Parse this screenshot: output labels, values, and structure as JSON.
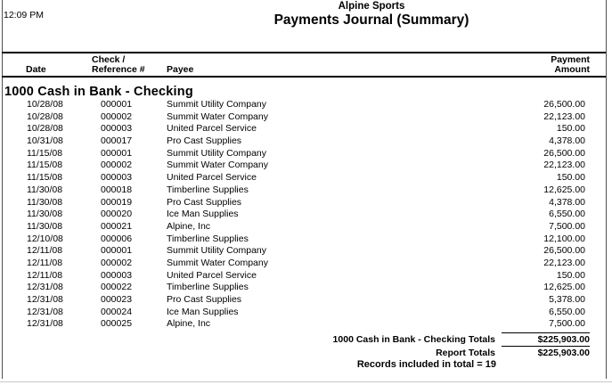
{
  "report": {
    "time": "12:09 PM",
    "company": "Alpine Sports",
    "title": "Payments Journal (Summary)",
    "columns": {
      "date": "Date",
      "check_line1": "Check /",
      "check_line2": "Reference #",
      "payee": "Payee",
      "amount_line1": "Payment",
      "amount_line2": "Amount"
    },
    "section": "1000 Cash in Bank - Checking",
    "rows": [
      {
        "date": "10/28/08",
        "check": "000001",
        "payee": "Summit Utility Company",
        "amount": "26,500.00"
      },
      {
        "date": "10/28/08",
        "check": "000002",
        "payee": "Summit Water Company",
        "amount": "22,123.00"
      },
      {
        "date": "10/28/08",
        "check": "000003",
        "payee": "United Parcel Service",
        "amount": "150.00"
      },
      {
        "date": "10/31/08",
        "check": "000017",
        "payee": "Pro Cast Supplies",
        "amount": "4,378.00"
      },
      {
        "date": "11/15/08",
        "check": "000001",
        "payee": "Summit Utility Company",
        "amount": "26,500.00"
      },
      {
        "date": "11/15/08",
        "check": "000002",
        "payee": "Summit Water Company",
        "amount": "22,123.00"
      },
      {
        "date": "11/15/08",
        "check": "000003",
        "payee": "United Parcel Service",
        "amount": "150.00"
      },
      {
        "date": "11/30/08",
        "check": "000018",
        "payee": "Timberline Supplies",
        "amount": "12,625.00"
      },
      {
        "date": "11/30/08",
        "check": "000019",
        "payee": "Pro Cast Supplies",
        "amount": "4,378.00"
      },
      {
        "date": "11/30/08",
        "check": "000020",
        "payee": "Ice Man Supplies",
        "amount": "6,550.00"
      },
      {
        "date": "11/30/08",
        "check": "000021",
        "payee": "Alpine, Inc",
        "amount": "7,500.00"
      },
      {
        "date": "12/10/08",
        "check": "000006",
        "payee": "Timberline Supplies",
        "amount": "12,100.00"
      },
      {
        "date": "12/11/08",
        "check": "000001",
        "payee": "Summit Utility Company",
        "amount": "26,500.00"
      },
      {
        "date": "12/11/08",
        "check": "000002",
        "payee": "Summit Water Company",
        "amount": "22,123.00"
      },
      {
        "date": "12/11/08",
        "check": "000003",
        "payee": "United Parcel Service",
        "amount": "150.00"
      },
      {
        "date": "12/31/08",
        "check": "000022",
        "payee": "Timberline Supplies",
        "amount": "12,625.00"
      },
      {
        "date": "12/31/08",
        "check": "000023",
        "payee": "Pro Cast Supplies",
        "amount": "5,378.00"
      },
      {
        "date": "12/31/08",
        "check": "000024",
        "payee": "Ice Man Supplies",
        "amount": "6,550.00"
      },
      {
        "date": "12/31/08",
        "check": "000025",
        "payee": "Alpine, Inc",
        "amount": "7,500.00"
      }
    ],
    "totals": [
      {
        "label": "1000 Cash in Bank - Checking Totals",
        "amount": "$225,903.00"
      },
      {
        "label": "Report Totals",
        "amount": "$225,903.00"
      }
    ],
    "footer": "Records included in total = 19"
  }
}
